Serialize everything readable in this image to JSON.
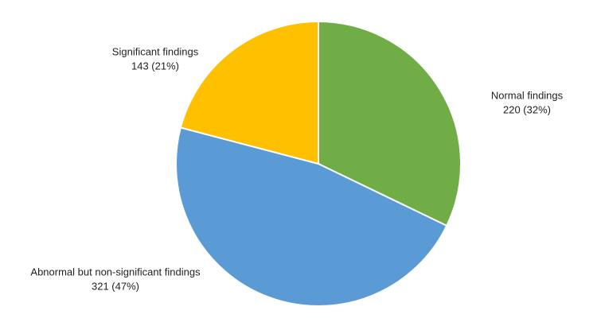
{
  "chart_data": {
    "type": "pie",
    "categories": [
      "Normal findings",
      "Abnormal but non-significant findings",
      "Significant findings"
    ],
    "values": [
      220,
      321,
      143
    ],
    "value_labels": [
      "220 (32%)",
      "321 (47%)",
      "143 (21%)"
    ],
    "colors": [
      "#70ad47",
      "#5b9bd5",
      "#ffc000"
    ]
  }
}
